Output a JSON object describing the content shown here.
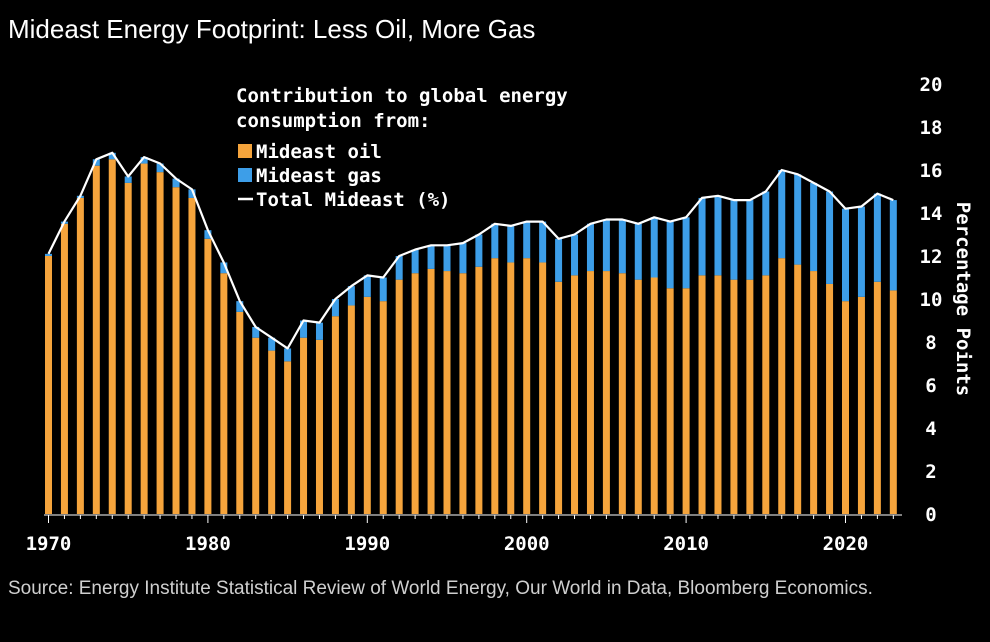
{
  "header": {
    "title": "Mideast Energy Footprint: Less Oil, More Gas"
  },
  "footer": {
    "source": "Source: Energy Institute Statistical Review of World Energy, Our World in Data, Bloomberg Economics."
  },
  "chart_data": {
    "type": "bar",
    "stacked": true,
    "title": "Mideast Energy Footprint: Less Oil, More Gas",
    "legend_title": "Contribution to global energy consumption from:",
    "legend_title_lines": [
      "Contribution to global energy",
      "consumption from:"
    ],
    "legend_entries": [
      "Mideast oil",
      "Mideast gas",
      "Total Mideast (%)"
    ],
    "legend_position": "top-left",
    "ylabel": "Percentage Points",
    "ylim": [
      0,
      20
    ],
    "yticks": [
      0,
      2,
      4,
      6,
      8,
      10,
      12,
      14,
      16,
      18,
      20
    ],
    "xticks": [
      1970,
      1980,
      1990,
      2000,
      2010,
      2020
    ],
    "x": [
      1970,
      1971,
      1972,
      1973,
      1974,
      1975,
      1976,
      1977,
      1978,
      1979,
      1980,
      1981,
      1982,
      1983,
      1984,
      1985,
      1986,
      1987,
      1988,
      1989,
      1990,
      1991,
      1992,
      1993,
      1994,
      1995,
      1996,
      1997,
      1998,
      1999,
      2000,
      2001,
      2002,
      2003,
      2004,
      2005,
      2006,
      2007,
      2008,
      2009,
      2010,
      2011,
      2012,
      2013,
      2014,
      2015,
      2016,
      2017,
      2018,
      2019,
      2020,
      2021,
      2022,
      2023
    ],
    "series": [
      {
        "name": "Mideast oil",
        "color": "#f5a43c",
        "values": [
          12.0,
          13.5,
          14.7,
          16.2,
          16.5,
          15.4,
          16.3,
          15.9,
          15.2,
          14.7,
          12.8,
          11.2,
          9.4,
          8.2,
          7.6,
          7.1,
          8.2,
          8.1,
          9.2,
          9.7,
          10.1,
          9.9,
          10.9,
          11.2,
          11.4,
          11.3,
          11.2,
          11.5,
          11.9,
          11.7,
          11.9,
          11.7,
          10.8,
          11.1,
          11.3,
          11.3,
          11.2,
          10.9,
          11.0,
          10.5,
          10.5,
          11.1,
          11.1,
          10.9,
          10.9,
          11.1,
          11.9,
          11.6,
          11.3,
          10.7,
          9.9,
          10.1,
          10.8,
          10.4
        ]
      },
      {
        "name": "Mideast gas",
        "color": "#3d9ee8",
        "values": [
          0.1,
          0.1,
          0.1,
          0.3,
          0.3,
          0.3,
          0.3,
          0.4,
          0.4,
          0.4,
          0.4,
          0.5,
          0.5,
          0.5,
          0.6,
          0.6,
          0.8,
          0.8,
          0.8,
          0.9,
          1.0,
          1.1,
          1.1,
          1.1,
          1.1,
          1.2,
          1.4,
          1.5,
          1.6,
          1.7,
          1.7,
          1.9,
          2.0,
          1.9,
          2.2,
          2.4,
          2.5,
          2.6,
          2.8,
          3.1,
          3.3,
          3.6,
          3.7,
          3.7,
          3.7,
          3.9,
          4.1,
          4.2,
          4.1,
          4.3,
          4.3,
          4.2,
          4.1,
          4.2
        ]
      }
    ],
    "total": {
      "name": "Total Mideast (%)",
      "color": "#ffffff",
      "values": [
        12.1,
        13.6,
        14.8,
        16.5,
        16.8,
        15.7,
        16.6,
        16.3,
        15.6,
        15.1,
        13.2,
        11.7,
        9.9,
        8.7,
        8.2,
        7.7,
        9.0,
        8.9,
        10.0,
        10.6,
        11.1,
        11.0,
        12.0,
        12.3,
        12.5,
        12.5,
        12.6,
        13.0,
        13.5,
        13.4,
        13.6,
        13.6,
        12.8,
        13.0,
        13.5,
        13.7,
        13.7,
        13.5,
        13.8,
        13.6,
        13.8,
        14.7,
        14.8,
        14.6,
        14.6,
        15.0,
        16.0,
        15.8,
        15.4,
        15.0,
        14.2,
        14.3,
        14.9,
        14.6
      ]
    }
  }
}
